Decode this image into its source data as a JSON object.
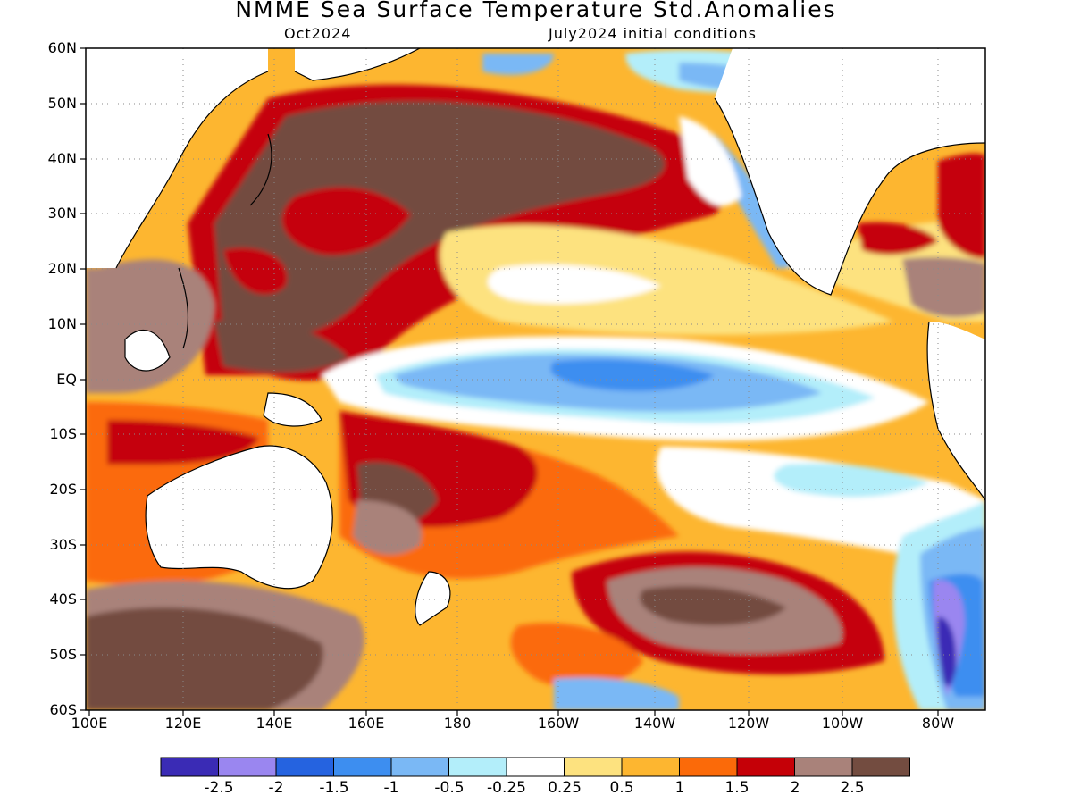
{
  "title": "NMME Sea Surface Temperature Std.Anomalies",
  "subtitle_left": "Oct2024",
  "subtitle_right": "July2024 initial conditions",
  "lat_labels": [
    "60N",
    "50N",
    "40N",
    "30N",
    "20N",
    "10N",
    "EQ",
    "10S",
    "20S",
    "30S",
    "40S",
    "50S",
    "60S"
  ],
  "lon_labels": [
    "100E",
    "120E",
    "140E",
    "160E",
    "180",
    "160W",
    "140W",
    "120W",
    "100W",
    "80W"
  ],
  "colorbar": {
    "colors": [
      "#3a2bb5",
      "#9a86f0",
      "#2563e0",
      "#3d8ef0",
      "#7ab8f5",
      "#b3eefa",
      "#ffffff",
      "#fde27f",
      "#fdb630",
      "#fb6a09",
      "#c50007",
      "#a9827a",
      "#734c40"
    ],
    "labels": [
      "-2.5",
      "-2",
      "-1.5",
      "-1",
      "-0.5",
      "-0.25",
      "0.25",
      "0.5",
      "1",
      "1.5",
      "2",
      "2.5"
    ]
  },
  "chart_data": {
    "type": "heatmap",
    "title": "NMME Sea Surface Temperature Std.Anomalies",
    "variable": "SST standardized anomaly",
    "forecast_month": "Oct2024",
    "initial_conditions": "July2024 initial conditions",
    "lon_range": [
      "100E",
      "70W"
    ],
    "lat_range": [
      "60S",
      "60N"
    ],
    "grid": true,
    "contour_levels": [
      -2.5,
      -2,
      -1.5,
      -1,
      -0.5,
      -0.25,
      0.25,
      0.5,
      1,
      1.5,
      2,
      2.5
    ]
  }
}
